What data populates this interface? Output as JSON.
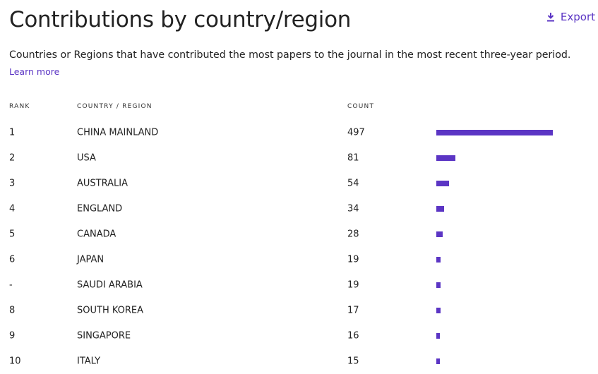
{
  "header": {
    "title": "Contributions by country/region",
    "export": "Export",
    "description": "Countries or Regions that have contributed the most papers to the journal in the most recent three-year period.",
    "learn_more": "Learn more"
  },
  "table": {
    "columns": [
      "RANK",
      "COUNTRY / REGION",
      "COUNT"
    ],
    "rows": [
      {
        "rank": "1",
        "country": "CHINA MAINLAND",
        "count": 497
      },
      {
        "rank": "2",
        "country": "USA",
        "count": 81
      },
      {
        "rank": "3",
        "country": "AUSTRALIA",
        "count": 54
      },
      {
        "rank": "4",
        "country": "ENGLAND",
        "count": 34
      },
      {
        "rank": "5",
        "country": "CANADA",
        "count": 28
      },
      {
        "rank": "6",
        "country": "JAPAN",
        "count": 19
      },
      {
        "rank": "-",
        "country": "SAUDI ARABIA",
        "count": 19
      },
      {
        "rank": "8",
        "country": "SOUTH KOREA",
        "count": 17
      },
      {
        "rank": "9",
        "country": "SINGAPORE",
        "count": 16
      },
      {
        "rank": "10",
        "country": "ITALY",
        "count": 15
      }
    ],
    "bar_color": "#5b35c4"
  }
}
